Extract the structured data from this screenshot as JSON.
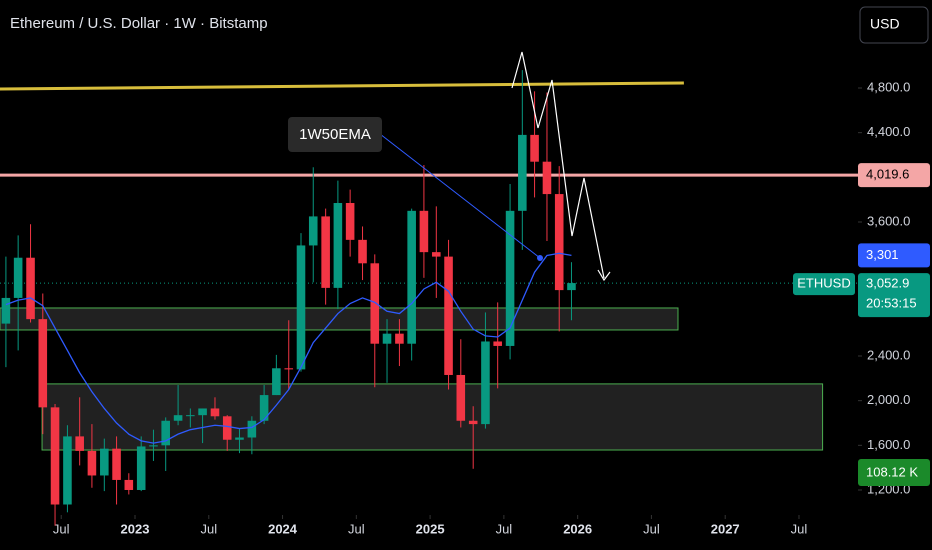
{
  "chart_data": {
    "type": "candlestick",
    "title": "Ethereum / U.S. Dollar · 1W · Bitstamp",
    "currency": "USD",
    "symbol": "ETHUSD",
    "x": [
      2022.125,
      2022.208,
      2022.292,
      2022.375,
      2022.458,
      2022.542,
      2022.625,
      2022.708,
      2022.792,
      2022.875,
      2022.958,
      2023.042,
      2023.125,
      2023.208,
      2023.292,
      2023.375,
      2023.458,
      2023.542,
      2023.625,
      2023.708,
      2023.792,
      2023.875,
      2023.958,
      2024.042,
      2024.125,
      2024.208,
      2024.292,
      2024.375,
      2024.458,
      2024.542,
      2024.625,
      2024.708,
      2024.792,
      2024.875,
      2024.958,
      2025.042,
      2025.125,
      2025.208,
      2025.292,
      2025.375,
      2025.458,
      2025.542,
      2025.625,
      2025.708,
      2025.792,
      2025.875,
      2025.958
    ],
    "open": [
      2690,
      2920,
      3280,
      2730,
      1940,
      1070,
      1680,
      1550,
      1330,
      1570,
      1290,
      1200,
      1590,
      1600,
      1820,
      1870,
      1870,
      1930,
      1860,
      1650,
      1670,
      1820,
      2050,
      2290,
      2280,
      3390,
      3650,
      3010,
      3770,
      3440,
      3230,
      2510,
      2600,
      2510,
      3700,
      3330,
      3290,
      2230,
      1820,
      1790,
      2530,
      2490,
      3700,
      4380,
      4140,
      3850,
      2990
    ],
    "high": [
      3290,
      3480,
      3580,
      2960,
      1970,
      1780,
      2030,
      1790,
      1660,
      1680,
      1350,
      1680,
      1740,
      1850,
      2140,
      1930,
      1930,
      2030,
      1870,
      1750,
      1860,
      2140,
      2410,
      2720,
      3500,
      4090,
      3720,
      3970,
      3890,
      3560,
      3310,
      2730,
      2730,
      3720,
      4110,
      3740,
      3440,
      2550,
      1950,
      2790,
      2880,
      3940,
      4960,
      4770,
      4760,
      4100,
      3240
    ],
    "low": [
      2300,
      2450,
      2700,
      1700,
      880,
      1000,
      1420,
      1220,
      1190,
      1070,
      1160,
      1190,
      1460,
      1370,
      1780,
      1760,
      1620,
      1830,
      1550,
      1530,
      1520,
      1790,
      2050,
      2100,
      2260,
      3060,
      2860,
      2820,
      3290,
      3080,
      2120,
      2160,
      2310,
      2360,
      3100,
      2920,
      2100,
      1760,
      1390,
      1750,
      2110,
      2370,
      3350,
      3820,
      3430,
      2620,
      2720
    ],
    "close": [
      2920,
      3280,
      2730,
      1940,
      1070,
      1680,
      1550,
      1330,
      1570,
      1290,
      1200,
      1590,
      1600,
      1820,
      1870,
      1870,
      1930,
      1860,
      1650,
      1670,
      1820,
      2050,
      2290,
      2280,
      3390,
      3650,
      3010,
      3770,
      3440,
      3230,
      2510,
      2600,
      2510,
      3700,
      3330,
      3290,
      2230,
      1820,
      1790,
      2530,
      2490,
      3700,
      4380,
      4140,
      3850,
      2990,
      3052.9
    ],
    "up_color": "#089981",
    "down_color": "#f23645",
    "ema": {
      "color": "#2f5bff",
      "values": [
        2860,
        2900,
        2920,
        2850,
        2650,
        2450,
        2250,
        2080,
        1930,
        1800,
        1700,
        1640,
        1620,
        1640,
        1700,
        1740,
        1760,
        1780,
        1770,
        1750,
        1760,
        1830,
        1960,
        2100,
        2300,
        2520,
        2650,
        2780,
        2870,
        2920,
        2880,
        2800,
        2780,
        2870,
        3000,
        3060,
        2980,
        2800,
        2640,
        2580,
        2570,
        2650,
        2900,
        3150,
        3300,
        3320,
        3301
      ]
    },
    "ema_annotation": "1W50EMA",
    "ema_label": {
      "value": 3301,
      "label": "3,301"
    },
    "last_price": {
      "value": 3052.9,
      "label": "3,052.9"
    },
    "countdown": "20:53:15",
    "volume_label": "108.12 K",
    "resistance": {
      "value": 4019.6,
      "label": "4,019.6",
      "color": "#f4a6a6"
    },
    "trendline": {
      "x": [
        2022.085,
        2026.72
      ],
      "y": [
        4791,
        4845
      ],
      "color": "#d8be3c"
    },
    "zones": [
      {
        "x": [
          2022.085,
          2026.68
        ],
        "low": 2633,
        "high": 2830
      },
      {
        "x": [
          2022.37,
          2027.66
        ],
        "low": 1558,
        "high": 2150
      }
    ],
    "xlim": [
      2022.085,
      2027.9
    ],
    "ylim": [
      976,
      5588
    ],
    "yticks": [
      {
        "value": 1200,
        "label": "1,200.0"
      },
      {
        "value": 1600,
        "label": "1,600.0"
      },
      {
        "value": 2000,
        "label": "2,000.0"
      },
      {
        "value": 2400,
        "label": "2,400.0"
      },
      {
        "value": 3600,
        "label": "3,600.0"
      },
      {
        "value": 4400,
        "label": "4,400.0"
      },
      {
        "value": 4800,
        "label": "4,800.0"
      }
    ],
    "xticks": [
      {
        "value": 2022.5,
        "label": "Jul"
      },
      {
        "value": 2023,
        "label": "2023"
      },
      {
        "value": 2023.5,
        "label": "Jul"
      },
      {
        "value": 2024,
        "label": "2024"
      },
      {
        "value": 2024.5,
        "label": "Jul"
      },
      {
        "value": 2025,
        "label": "2025"
      },
      {
        "value": 2025.5,
        "label": "Jul"
      },
      {
        "value": 2026,
        "label": "2026"
      },
      {
        "value": 2026.5,
        "label": "Jul"
      },
      {
        "value": 2027,
        "label": "2027"
      },
      {
        "value": 2027.5,
        "label": "Jul"
      }
    ]
  }
}
